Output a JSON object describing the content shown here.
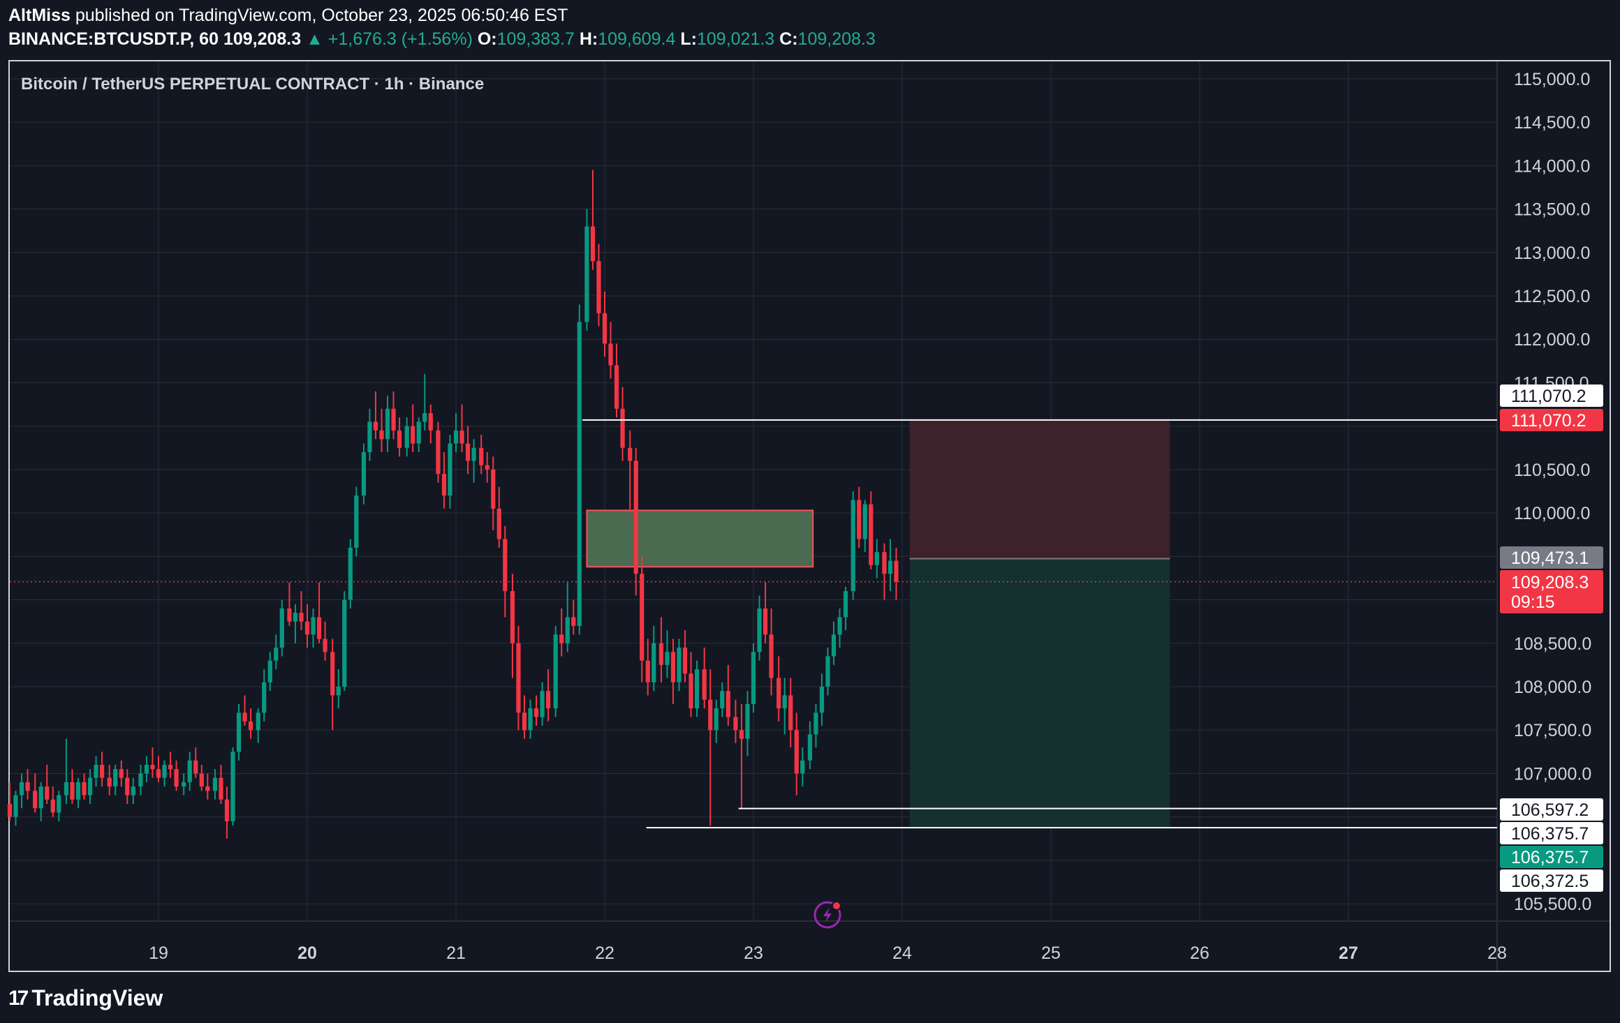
{
  "header": {
    "author": "AltMiss",
    "published": "published on TradingView.com, October 23, 2025 06:50:46 EST",
    "symbol": "BINANCE:BTCUSDT.P, 60",
    "last": "109,208.3",
    "change": "▲ +1,676.3 (+1.56%)",
    "o_label": "O:",
    "o_val": "109,383.7",
    "h_label": "H:",
    "h_val": "109,609.4",
    "l_label": "L:",
    "l_val": "109,021.3",
    "c_label": "C:",
    "c_val": "109,208.3"
  },
  "brand": {
    "name": "TradingView",
    "logo_glyph": "17"
  },
  "colors": {
    "background": "#131722",
    "up": "#089981",
    "down": "#f23645",
    "grid": "#2a2e39",
    "stop_zone": "#3d222b",
    "target_zone": "#14302f",
    "fvg_fill": "#4a6b4f",
    "fvg_border": "#f7525f",
    "lightning": "#9c27b0"
  },
  "chart_data": {
    "type": "candlestick",
    "title": "Bitcoin / TetherUS PERPETUAL CONTRACT · 1h · Binance",
    "x_ticks": [
      {
        "label": "19",
        "t": 19.0,
        "bold": false
      },
      {
        "label": "20",
        "t": 20.0,
        "bold": true
      },
      {
        "label": "21",
        "t": 21.0,
        "bold": false
      },
      {
        "label": "22",
        "t": 22.0,
        "bold": false
      },
      {
        "label": "23",
        "t": 23.0,
        "bold": false
      },
      {
        "label": "24",
        "t": 24.0,
        "bold": false
      },
      {
        "label": "25",
        "t": 25.0,
        "bold": false
      },
      {
        "label": "26",
        "t": 26.0,
        "bold": false
      },
      {
        "label": "27",
        "t": 27.0,
        "bold": true
      },
      {
        "label": "28",
        "t": 28.0,
        "bold": false
      }
    ],
    "y_ticks": [
      "115,000.0",
      "114,500.0",
      "114,000.0",
      "113,500.0",
      "113,000.0",
      "112,500.0",
      "112,000.0",
      "111,500.0",
      "110,500.0",
      "110,000.0",
      "108,500.0",
      "108,000.0",
      "107,500.0",
      "107,000.0",
      "105,500.0"
    ],
    "ylim": [
      105300,
      115200
    ],
    "xlim": [
      18.0,
      28.0
    ],
    "current_price": 109208.3,
    "current_price_label": "109,208.3",
    "countdown": "09:15",
    "price_tags": [
      {
        "label": "111,070.2",
        "price": 111070.2,
        "style": "white"
      },
      {
        "label": "111,070.2",
        "price": 111070.2,
        "style": "red"
      },
      {
        "label": "109,473.1",
        "price": 109473.1,
        "style": "gray"
      },
      {
        "label": "106,597.2",
        "price": 106597.2,
        "style": "white"
      },
      {
        "label": "106,375.7",
        "price": 106375.7,
        "style": "white"
      },
      {
        "label": "106,375.7",
        "price": 106375.7,
        "style": "green"
      },
      {
        "label": "106,372.5",
        "price": 106372.5,
        "style": "white"
      }
    ],
    "horizontal_lines": [
      {
        "price": 111070.2,
        "t_start": 21.85
      },
      {
        "price": 106597.2,
        "t_start": 22.9
      },
      {
        "price": 106375.7,
        "t_start": 22.28
      }
    ],
    "fvg_box": {
      "t_start": 21.88,
      "t_end": 23.4,
      "top": 110030,
      "bottom": 109380
    },
    "position": {
      "t_start": 24.05,
      "t_end": 25.8,
      "stop": 111070.2,
      "entry": 109473.1,
      "target": 106375.7
    },
    "candles": [
      [
        18.0,
        106650,
        106900,
        106450,
        106500
      ],
      [
        18.04,
        106500,
        106800,
        106400,
        106750
      ],
      [
        18.08,
        106750,
        107000,
        106600,
        106900
      ],
      [
        18.12,
        106900,
        107050,
        106700,
        106800
      ],
      [
        18.17,
        106800,
        107000,
        106550,
        106600
      ],
      [
        18.21,
        106600,
        106900,
        106450,
        106850
      ],
      [
        18.25,
        106850,
        107100,
        106650,
        106700
      ],
      [
        18.29,
        106700,
        106850,
        106500,
        106550
      ],
      [
        18.33,
        106550,
        106800,
        106450,
        106750
      ],
      [
        18.38,
        106750,
        107400,
        106650,
        106900
      ],
      [
        18.42,
        106900,
        107050,
        106650,
        106700
      ],
      [
        18.46,
        106700,
        106950,
        106600,
        106900
      ],
      [
        18.5,
        106900,
        107000,
        106700,
        106750
      ],
      [
        18.54,
        106750,
        107050,
        106650,
        106950
      ],
      [
        18.58,
        106950,
        107200,
        106850,
        107100
      ],
      [
        18.62,
        107100,
        107250,
        106850,
        106950
      ],
      [
        18.67,
        106950,
        107100,
        106750,
        106850
      ],
      [
        18.71,
        106850,
        107100,
        106750,
        107050
      ],
      [
        18.75,
        107050,
        107150,
        106850,
        106950
      ],
      [
        18.79,
        106950,
        107050,
        106650,
        106750
      ],
      [
        18.83,
        106750,
        106950,
        106650,
        106850
      ],
      [
        18.88,
        106850,
        107100,
        106750,
        107000
      ],
      [
        18.92,
        107000,
        107200,
        106900,
        107100
      ],
      [
        18.96,
        107100,
        107300,
        106950,
        107050
      ],
      [
        19.0,
        107050,
        107200,
        106900,
        106950
      ],
      [
        19.04,
        106950,
        107150,
        106850,
        107100
      ],
      [
        19.08,
        107100,
        107250,
        106950,
        107050
      ],
      [
        19.12,
        107050,
        107150,
        106800,
        106850
      ],
      [
        19.17,
        106850,
        107000,
        106750,
        106900
      ],
      [
        19.21,
        106900,
        107250,
        106800,
        107150
      ],
      [
        19.25,
        107150,
        107300,
        106950,
        107000
      ],
      [
        19.29,
        107000,
        107100,
        106800,
        106850
      ],
      [
        19.33,
        106850,
        107000,
        106700,
        106800
      ],
      [
        19.38,
        106800,
        107050,
        106700,
        106950
      ],
      [
        19.42,
        106950,
        107100,
        106650,
        106700
      ],
      [
        19.46,
        106700,
        106850,
        106250,
        106450
      ],
      [
        19.5,
        106450,
        107300,
        106400,
        107250
      ],
      [
        19.54,
        107250,
        107800,
        107150,
        107700
      ],
      [
        19.58,
        107700,
        107900,
        107550,
        107600
      ],
      [
        19.62,
        107600,
        107750,
        107400,
        107500
      ],
      [
        19.67,
        107500,
        107750,
        107350,
        107700
      ],
      [
        19.71,
        107700,
        108200,
        107600,
        108050
      ],
      [
        19.75,
        108050,
        108400,
        107950,
        108300
      ],
      [
        19.79,
        108300,
        108600,
        108200,
        108450
      ],
      [
        19.83,
        108450,
        109000,
        108350,
        108900
      ],
      [
        19.88,
        108900,
        109200,
        108700,
        108750
      ],
      [
        19.92,
        108750,
        108950,
        108500,
        108850
      ],
      [
        19.96,
        108850,
        109100,
        108650,
        108750
      ],
      [
        20.0,
        108750,
        108950,
        108450,
        108600
      ],
      [
        20.04,
        108600,
        108900,
        108450,
        108800
      ],
      [
        20.08,
        108800,
        109200,
        108500,
        108550
      ],
      [
        20.12,
        108550,
        108750,
        108300,
        108400
      ],
      [
        20.17,
        108400,
        108550,
        107500,
        107900
      ],
      [
        20.21,
        107900,
        108200,
        107750,
        108000
      ],
      [
        20.25,
        108000,
        109100,
        107950,
        109000
      ],
      [
        20.29,
        109000,
        109700,
        108900,
        109600
      ],
      [
        20.33,
        109600,
        110300,
        109500,
        110200
      ],
      [
        20.38,
        110200,
        110800,
        110100,
        110700
      ],
      [
        20.42,
        110700,
        111200,
        110600,
        111050
      ],
      [
        20.46,
        111050,
        111400,
        110850,
        110950
      ],
      [
        20.5,
        110950,
        111200,
        110700,
        110850
      ],
      [
        20.54,
        110850,
        111350,
        110700,
        111200
      ],
      [
        20.58,
        111200,
        111400,
        110850,
        110950
      ],
      [
        20.62,
        110950,
        111100,
        110650,
        110750
      ],
      [
        20.67,
        110750,
        111100,
        110650,
        111000
      ],
      [
        20.71,
        111000,
        111250,
        110700,
        110800
      ],
      [
        20.75,
        110800,
        111100,
        110700,
        111050
      ],
      [
        20.79,
        111050,
        111600,
        110950,
        111150
      ],
      [
        20.83,
        111150,
        111250,
        110800,
        110950
      ],
      [
        20.88,
        110950,
        111050,
        110350,
        110450
      ],
      [
        20.92,
        110450,
        110700,
        110050,
        110200
      ],
      [
        20.96,
        110200,
        110900,
        110050,
        110800
      ],
      [
        21.0,
        110800,
        111150,
        110700,
        110950
      ],
      [
        21.04,
        110950,
        111250,
        110700,
        110800
      ],
      [
        21.08,
        110800,
        111000,
        110450,
        110600
      ],
      [
        21.12,
        110600,
        110850,
        110350,
        110750
      ],
      [
        21.17,
        110750,
        110900,
        110450,
        110550
      ],
      [
        21.21,
        110550,
        110700,
        110350,
        110500
      ],
      [
        21.25,
        110500,
        110650,
        109800,
        110050
      ],
      [
        21.29,
        110050,
        110300,
        109600,
        109700
      ],
      [
        21.33,
        109700,
        109850,
        108800,
        109100
      ],
      [
        21.38,
        109100,
        109300,
        108100,
        108500
      ],
      [
        21.42,
        108500,
        108700,
        107500,
        107700
      ],
      [
        21.46,
        107700,
        107900,
        107400,
        107500
      ],
      [
        21.5,
        107500,
        107850,
        107400,
        107750
      ],
      [
        21.54,
        107750,
        107900,
        107550,
        107650
      ],
      [
        21.58,
        107650,
        108050,
        107550,
        107950
      ],
      [
        21.62,
        107950,
        108200,
        107600,
        107750
      ],
      [
        21.67,
        107750,
        108700,
        107650,
        108600
      ],
      [
        21.71,
        108600,
        108900,
        108350,
        108500
      ],
      [
        21.75,
        108500,
        109200,
        108400,
        108800
      ],
      [
        21.79,
        108800,
        109000,
        108600,
        108700
      ],
      [
        21.83,
        108700,
        112400,
        108600,
        112200
      ],
      [
        21.88,
        112200,
        113500,
        112100,
        113300
      ],
      [
        21.92,
        113300,
        113950,
        112800,
        112900
      ],
      [
        21.96,
        112900,
        113100,
        112150,
        112300
      ],
      [
        22.0,
        112300,
        112550,
        111800,
        111950
      ],
      [
        22.04,
        111950,
        112200,
        111550,
        111700
      ],
      [
        22.08,
        111700,
        111950,
        111100,
        111200
      ],
      [
        22.12,
        111200,
        111450,
        110600,
        110750
      ],
      [
        22.17,
        110750,
        110950,
        110000,
        110600
      ],
      [
        22.21,
        110600,
        110750,
        109050,
        109300
      ],
      [
        22.25,
        109300,
        109500,
        108050,
        108300
      ],
      [
        22.29,
        108300,
        108550,
        107900,
        108050
      ],
      [
        22.33,
        108050,
        108700,
        107950,
        108500
      ],
      [
        22.38,
        108500,
        108800,
        108050,
        108250
      ],
      [
        22.42,
        108250,
        108650,
        108100,
        108400
      ],
      [
        22.46,
        108400,
        108550,
        107800,
        108050
      ],
      [
        22.5,
        108050,
        108550,
        107950,
        108450
      ],
      [
        22.54,
        108450,
        108650,
        108050,
        108150
      ],
      [
        22.58,
        108150,
        108400,
        107650,
        107750
      ],
      [
        22.62,
        107750,
        108300,
        107650,
        108200
      ],
      [
        22.67,
        108200,
        108450,
        107750,
        107850
      ],
      [
        22.71,
        107850,
        108200,
        106400,
        107500
      ],
      [
        22.75,
        107500,
        107850,
        107350,
        107750
      ],
      [
        22.79,
        107750,
        108050,
        107650,
        107950
      ],
      [
        22.83,
        107950,
        108250,
        107550,
        107650
      ],
      [
        22.88,
        107650,
        107850,
        107350,
        107500
      ],
      [
        22.92,
        107500,
        107800,
        106600,
        107400
      ],
      [
        22.96,
        107400,
        107950,
        107200,
        107800
      ],
      [
        23.0,
        107800,
        108500,
        107700,
        108400
      ],
      [
        23.04,
        108400,
        109050,
        108300,
        108900
      ],
      [
        23.08,
        108900,
        109200,
        108500,
        108600
      ],
      [
        23.12,
        108600,
        108900,
        107900,
        108100
      ],
      [
        23.17,
        108100,
        108350,
        107600,
        107750
      ],
      [
        23.21,
        107750,
        108100,
        107450,
        107900
      ],
      [
        23.25,
        107900,
        108100,
        107300,
        107500
      ],
      [
        23.29,
        107500,
        107700,
        106750,
        107000
      ],
      [
        23.33,
        107000,
        107300,
        106850,
        107150
      ],
      [
        23.38,
        107150,
        107600,
        107050,
        107450
      ],
      [
        23.42,
        107450,
        107800,
        107300,
        107700
      ],
      [
        23.46,
        107700,
        108150,
        107550,
        108000
      ],
      [
        23.5,
        108000,
        108450,
        107900,
        108350
      ],
      [
        23.54,
        108350,
        108750,
        108250,
        108600
      ],
      [
        23.58,
        108600,
        108900,
        108450,
        108800
      ],
      [
        23.62,
        108800,
        109150,
        108650,
        109100
      ],
      [
        23.67,
        109100,
        110250,
        109000,
        110150
      ],
      [
        23.71,
        110150,
        110300,
        109600,
        109700
      ],
      [
        23.75,
        109700,
        110150,
        109550,
        110100
      ],
      [
        23.79,
        110100,
        110250,
        109350,
        109400
      ],
      [
        23.83,
        109400,
        109700,
        109250,
        109550
      ],
      [
        23.88,
        109550,
        109650,
        109000,
        109300
      ],
      [
        23.92,
        109300,
        109700,
        109100,
        109450
      ],
      [
        23.96,
        109450,
        109600,
        109000,
        109208.3
      ]
    ]
  }
}
